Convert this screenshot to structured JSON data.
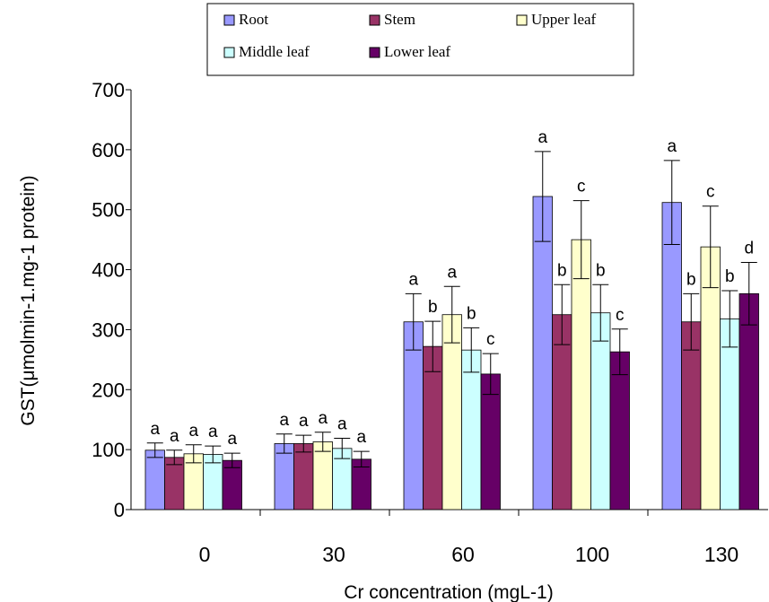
{
  "chart_data": {
    "type": "bar",
    "xlabel": "Cr concentration (mgL-1)",
    "ylabel": "GST(μmolmin-1.mg-1 protein)",
    "ylim": [
      0,
      700
    ],
    "yticks": [
      "0",
      "100",
      "200",
      "300",
      "400",
      "500",
      "600",
      "700"
    ],
    "categories": [
      "0",
      "30",
      "60",
      "100",
      "130"
    ],
    "grid": false,
    "legend_position": "top",
    "series": [
      {
        "name": "Root",
        "color": "#9999ff",
        "values": [
          99,
          110,
          313,
          522,
          512
        ],
        "errors": [
          12,
          16,
          47,
          75,
          70
        ],
        "labels": [
          "a",
          "a",
          "a",
          "a",
          "a"
        ]
      },
      {
        "name": "Stem",
        "color": "#993366",
        "values": [
          87,
          110,
          272,
          325,
          313
        ],
        "errors": [
          12,
          14,
          42,
          50,
          47
        ],
        "labels": [
          "a",
          "a",
          "b",
          "b",
          "b"
        ]
      },
      {
        "name": "Upper leaf",
        "color": "#ffffcc",
        "values": [
          93,
          113,
          325,
          450,
          438
        ],
        "errors": [
          15,
          16,
          47,
          65,
          68
        ],
        "labels": [
          "a",
          "a",
          "a",
          "c",
          "c"
        ]
      },
      {
        "name": "Middle leaf",
        "color": "#ccffff",
        "values": [
          92,
          102,
          266,
          328,
          318
        ],
        "errors": [
          14,
          17,
          37,
          47,
          47
        ],
        "labels": [
          "a",
          "a",
          "b",
          "b",
          "b"
        ]
      },
      {
        "name": "Lower leaf",
        "color": "#660066",
        "values": [
          82,
          84,
          226,
          263,
          360
        ],
        "errors": [
          12,
          13,
          34,
          38,
          52
        ],
        "labels": [
          "a",
          "a",
          "c",
          "c",
          "d"
        ]
      }
    ]
  }
}
